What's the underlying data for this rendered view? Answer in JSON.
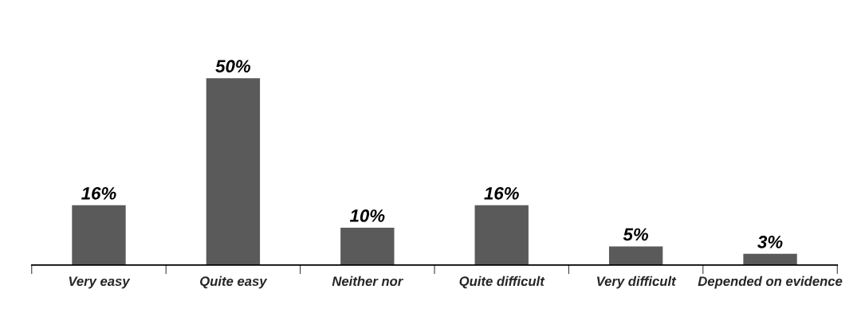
{
  "chart_data": {
    "type": "bar",
    "categories": [
      "Very easy",
      "Quite easy",
      "Neither nor",
      "Quite difficult",
      "Very difficult",
      "Depended on evidence"
    ],
    "values": [
      16,
      50,
      10,
      16,
      5,
      3
    ],
    "value_labels": [
      "16%",
      "50%",
      "10%",
      "16%",
      "5%",
      "3%"
    ],
    "color": "#5a5a5a",
    "tick_labels": "x",
    "grid": false,
    "legend": false
  }
}
